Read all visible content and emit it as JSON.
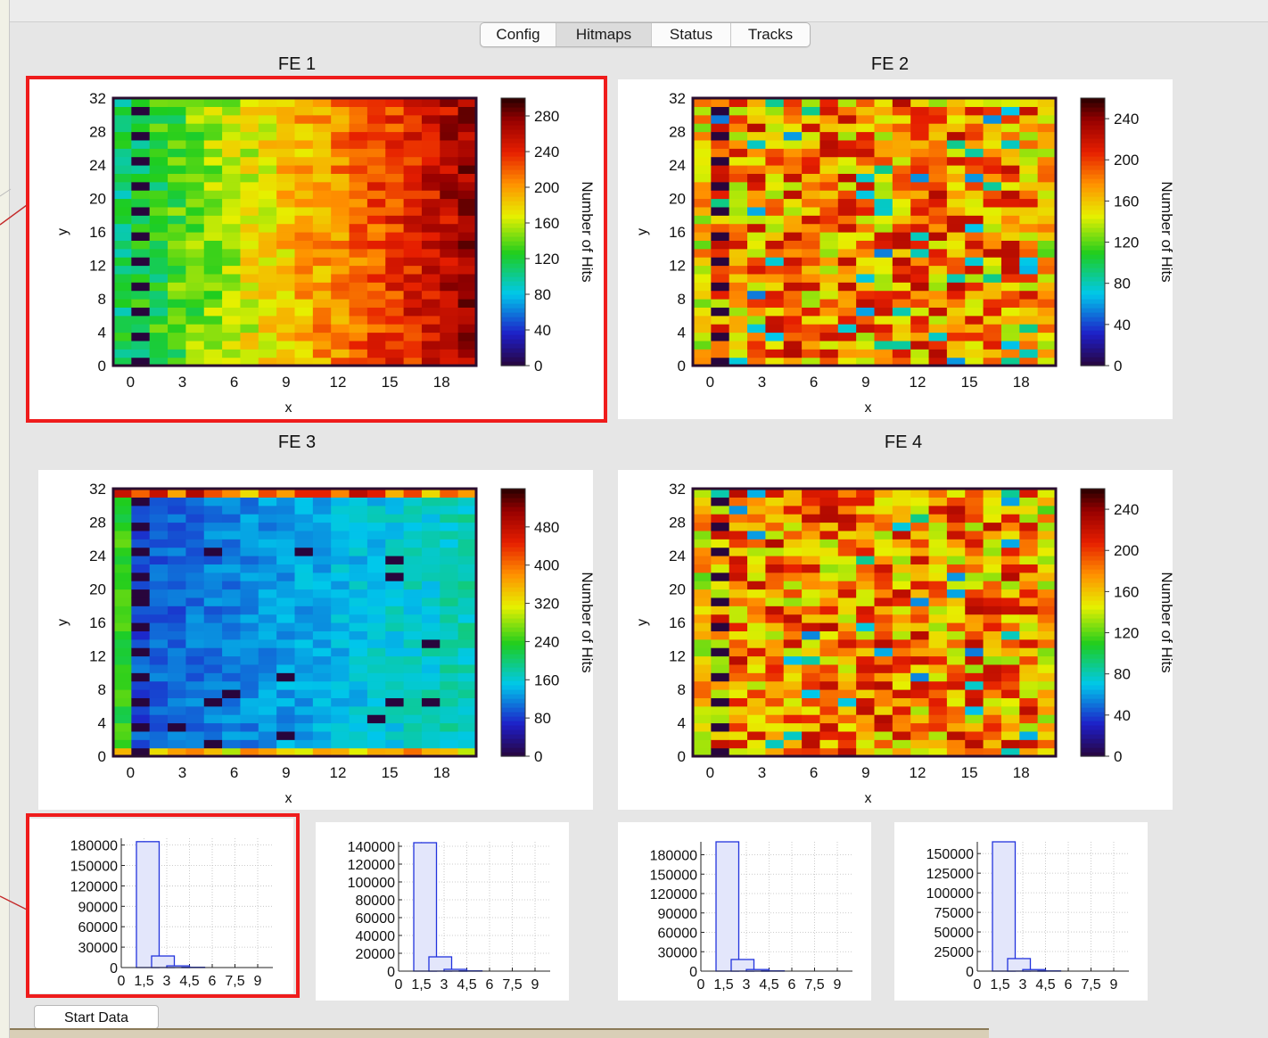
{
  "tabs": [
    {
      "label": "Config",
      "active": false
    },
    {
      "label": "Hitmaps",
      "active": true
    },
    {
      "label": "Status",
      "active": false
    },
    {
      "label": "Tracks",
      "active": false
    }
  ],
  "fe_titles": [
    "FE 1",
    "FE 2",
    "FE 3",
    "FE 4"
  ],
  "start_button": {
    "label": "Start Data"
  },
  "colors": {
    "highlight": "#ef1c1c",
    "hist_bar_stroke": "#2233dd",
    "hist_bar_fill": "#e3e6fb"
  },
  "chart_data": [
    {
      "type": "heatmap",
      "title": "FE 1",
      "xlabel": "x",
      "ylabel": "y",
      "xlim": [
        -1,
        20
      ],
      "ylim": [
        0,
        32
      ],
      "xticks": [
        "0",
        "3",
        "6",
        "9",
        "12",
        "15",
        "18"
      ],
      "yticks": [
        "0",
        "4",
        "8",
        "12",
        "16",
        "20",
        "24",
        "28",
        "32"
      ],
      "colorbar": {
        "label": "Number of Hits",
        "ticks": [
          "0",
          "40",
          "80",
          "120",
          "160",
          "200",
          "240",
          "280"
        ],
        "max": 300
      },
      "cols": 20,
      "rows": 32,
      "profile": "left-to-right increasing",
      "highlighted": true
    },
    {
      "type": "heatmap",
      "title": "FE 2",
      "xlabel": "x",
      "ylabel": "y",
      "xlim": [
        -1,
        20
      ],
      "ylim": [
        0,
        32
      ],
      "xticks": [
        "0",
        "3",
        "6",
        "9",
        "12",
        "15",
        "18"
      ],
      "yticks": [
        "0",
        "4",
        "8",
        "12",
        "16",
        "20",
        "24",
        "28",
        "32"
      ],
      "colorbar": {
        "label": "Number of Hits",
        "ticks": [
          "0",
          "40",
          "80",
          "120",
          "160",
          "200",
          "240"
        ],
        "max": 260
      },
      "cols": 20,
      "rows": 32,
      "profile": "mostly high with noise",
      "highlighted": false
    },
    {
      "type": "heatmap",
      "title": "FE 3",
      "xlabel": "x",
      "ylabel": "y",
      "xlim": [
        -1,
        20
      ],
      "ylim": [
        0,
        32
      ],
      "xticks": [
        "0",
        "3",
        "6",
        "9",
        "12",
        "15",
        "18"
      ],
      "yticks": [
        "0",
        "4",
        "8",
        "12",
        "16",
        "20",
        "24",
        "28",
        "32"
      ],
      "colorbar": {
        "label": "Number of Hits",
        "ticks": [
          "0",
          "80",
          "160",
          "240",
          "320",
          "400",
          "480"
        ],
        "max": 560
      },
      "cols": 20,
      "rows": 32,
      "profile": "low interior, hot top and bottom rows",
      "highlighted": false
    },
    {
      "type": "heatmap",
      "title": "FE 4",
      "xlabel": "x",
      "ylabel": "y",
      "xlim": [
        -1,
        20
      ],
      "ylim": [
        0,
        32
      ],
      "xticks": [
        "0",
        "3",
        "6",
        "9",
        "12",
        "15",
        "18"
      ],
      "yticks": [
        "0",
        "4",
        "8",
        "12",
        "16",
        "20",
        "24",
        "28",
        "32"
      ],
      "colorbar": {
        "label": "Number of Hits",
        "ticks": [
          "0",
          "40",
          "80",
          "120",
          "160",
          "200",
          "240"
        ],
        "max": 260
      },
      "cols": 20,
      "rows": 32,
      "profile": "mostly high with noise",
      "highlighted": false
    },
    {
      "type": "bar",
      "xticks": [
        "0",
        "1,5",
        "3",
        "4,5",
        "6",
        "7,5",
        "9"
      ],
      "xlim": [
        0,
        10
      ],
      "yticks": [
        "0",
        "30000",
        "60000",
        "90000",
        "120000",
        "150000",
        "180000"
      ],
      "ylim": [
        0,
        190000
      ],
      "x": [
        1,
        2,
        3,
        4
      ],
      "values": [
        185000,
        17000,
        2500,
        400
      ],
      "highlighted": true
    },
    {
      "type": "bar",
      "xticks": [
        "0",
        "1,5",
        "3",
        "4,5",
        "6",
        "7,5",
        "9"
      ],
      "xlim": [
        0,
        10
      ],
      "yticks": [
        "0",
        "20000",
        "40000",
        "60000",
        "80000",
        "100000",
        "120000",
        "140000"
      ],
      "ylim": [
        0,
        145000
      ],
      "x": [
        1,
        2,
        3,
        4
      ],
      "values": [
        144000,
        16000,
        2000,
        300
      ],
      "highlighted": false
    },
    {
      "type": "bar",
      "xticks": [
        "0",
        "1,5",
        "3",
        "4,5",
        "6",
        "7,5",
        "9"
      ],
      "xlim": [
        0,
        10
      ],
      "yticks": [
        "0",
        "30000",
        "60000",
        "90000",
        "120000",
        "150000",
        "180000"
      ],
      "ylim": [
        0,
        200000
      ],
      "x": [
        1,
        2,
        3,
        4
      ],
      "values": [
        200000,
        18000,
        2500,
        400
      ],
      "highlighted": false
    },
    {
      "type": "bar",
      "xticks": [
        "0",
        "1,5",
        "3",
        "4,5",
        "6",
        "7,5",
        "9"
      ],
      "xlim": [
        0,
        10
      ],
      "yticks": [
        "0",
        "25000",
        "50000",
        "75000",
        "100000",
        "125000",
        "150000"
      ],
      "ylim": [
        0,
        165000
      ],
      "x": [
        1,
        2,
        3,
        4
      ],
      "values": [
        165000,
        16000,
        2000,
        300
      ],
      "highlighted": false
    }
  ]
}
